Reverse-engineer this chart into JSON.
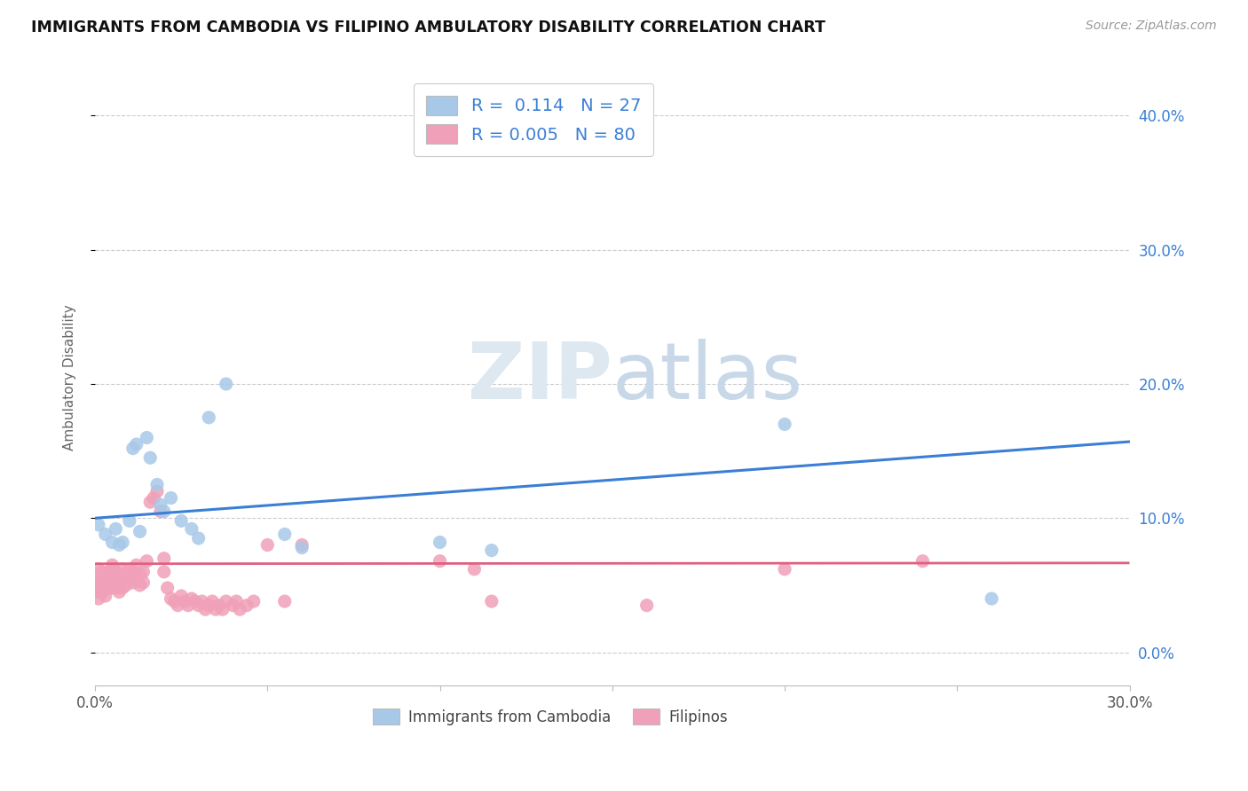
{
  "title": "IMMIGRANTS FROM CAMBODIA VS FILIPINO AMBULATORY DISABILITY CORRELATION CHART",
  "source": "Source: ZipAtlas.com",
  "ylabel": "Ambulatory Disability",
  "xlim": [
    0.0,
    0.3
  ],
  "ylim": [
    -0.025,
    0.435
  ],
  "yticks": [
    0.0,
    0.1,
    0.2,
    0.3,
    0.4
  ],
  "ytick_labels_right": [
    "0.0%",
    "10.0%",
    "20.0%",
    "30.0%",
    "40.0%"
  ],
  "xtick_positions": [
    0.0,
    0.05,
    0.1,
    0.15,
    0.2,
    0.25,
    0.3
  ],
  "xtick_labels": [
    "0.0%",
    "",
    "",
    "",
    "",
    "",
    "30.0%"
  ],
  "legend_r_cambodia": "0.114",
  "legend_n_cambodia": "27",
  "legend_r_filipino": "0.005",
  "legend_n_filipino": "80",
  "color_cambodia": "#a8c8e8",
  "color_filipino": "#f0a0b8",
  "color_cambodia_line": "#3a7fd5",
  "color_filipino_line": "#e06080",
  "watermark_zip": "ZIP",
  "watermark_atlas": "atlas",
  "cambodia_x": [
    0.001,
    0.003,
    0.005,
    0.006,
    0.007,
    0.008,
    0.01,
    0.011,
    0.012,
    0.013,
    0.015,
    0.016,
    0.018,
    0.019,
    0.02,
    0.022,
    0.025,
    0.028,
    0.03,
    0.033,
    0.038,
    0.055,
    0.06,
    0.1,
    0.115,
    0.2,
    0.26
  ],
  "cambodia_y": [
    0.095,
    0.088,
    0.082,
    0.092,
    0.08,
    0.082,
    0.098,
    0.152,
    0.155,
    0.09,
    0.16,
    0.145,
    0.125,
    0.11,
    0.105,
    0.115,
    0.098,
    0.092,
    0.085,
    0.175,
    0.2,
    0.088,
    0.078,
    0.082,
    0.076,
    0.17,
    0.04
  ],
  "filipino_x": [
    0.001,
    0.001,
    0.001,
    0.001,
    0.001,
    0.002,
    0.002,
    0.002,
    0.002,
    0.003,
    0.003,
    0.003,
    0.003,
    0.004,
    0.004,
    0.004,
    0.005,
    0.005,
    0.005,
    0.005,
    0.006,
    0.006,
    0.006,
    0.007,
    0.007,
    0.007,
    0.008,
    0.008,
    0.008,
    0.009,
    0.009,
    0.01,
    0.01,
    0.011,
    0.011,
    0.012,
    0.012,
    0.013,
    0.013,
    0.014,
    0.014,
    0.015,
    0.016,
    0.017,
    0.018,
    0.019,
    0.02,
    0.02,
    0.021,
    0.022,
    0.023,
    0.024,
    0.025,
    0.026,
    0.027,
    0.028,
    0.029,
    0.03,
    0.031,
    0.032,
    0.033,
    0.034,
    0.035,
    0.036,
    0.037,
    0.038,
    0.04,
    0.041,
    0.042,
    0.044,
    0.046,
    0.05,
    0.055,
    0.06,
    0.1,
    0.11,
    0.115,
    0.16,
    0.2,
    0.24
  ],
  "filipino_y": [
    0.062,
    0.055,
    0.05,
    0.045,
    0.04,
    0.06,
    0.055,
    0.05,
    0.045,
    0.058,
    0.052,
    0.047,
    0.042,
    0.06,
    0.055,
    0.048,
    0.065,
    0.06,
    0.055,
    0.048,
    0.06,
    0.055,
    0.048,
    0.058,
    0.052,
    0.045,
    0.062,
    0.055,
    0.048,
    0.058,
    0.05,
    0.062,
    0.055,
    0.06,
    0.052,
    0.065,
    0.055,
    0.058,
    0.05,
    0.06,
    0.052,
    0.068,
    0.112,
    0.115,
    0.12,
    0.105,
    0.07,
    0.06,
    0.048,
    0.04,
    0.038,
    0.035,
    0.042,
    0.038,
    0.035,
    0.04,
    0.038,
    0.035,
    0.038,
    0.032,
    0.035,
    0.038,
    0.032,
    0.035,
    0.032,
    0.038,
    0.035,
    0.038,
    0.032,
    0.035,
    0.038,
    0.08,
    0.038,
    0.08,
    0.068,
    0.062,
    0.038,
    0.035,
    0.062,
    0.068
  ]
}
